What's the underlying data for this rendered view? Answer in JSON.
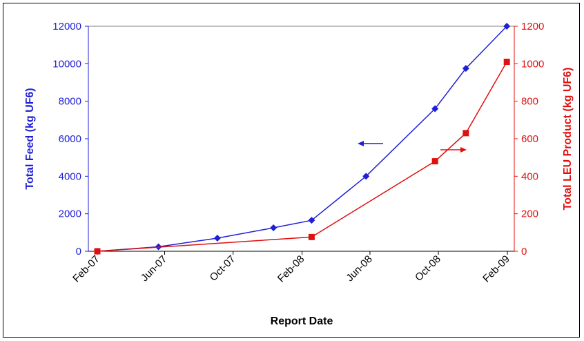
{
  "chart_data": {
    "type": "line",
    "title": "",
    "xlabel": "Report Date",
    "ylabel_left": "Total Feed (kg UF6)",
    "ylabel_right": "Total LEU Product (kg UF6)",
    "x_ticks": [
      "Feb-07",
      "Jun-07",
      "Oct-07",
      "Feb-08",
      "Jun-08",
      "Oct-08",
      "Feb-09"
    ],
    "y_left_ticks": [
      "0",
      "2000",
      "4000",
      "6000",
      "8000",
      "10000",
      "12000"
    ],
    "y_right_ticks": [
      "0",
      "200",
      "400",
      "600",
      "800",
      "1000",
      "1200"
    ],
    "ylim_left": [
      0,
      12000
    ],
    "ylim_right": [
      0,
      1200
    ],
    "xlim": [
      "2007-02-01",
      "2009-02-01"
    ],
    "grid": false,
    "legend": "none",
    "annotations": [
      "arrow pointing left: Total Feed uses left axis",
      "arrow pointing right: Total LEU Product uses right axis"
    ],
    "series": [
      {
        "axis": "left",
        "color": "#1f1fd6",
        "marker": "diamond",
        "x": [
          "2007-02-01",
          "2007-05-21",
          "2007-09-03",
          "2007-12-12",
          "2008-02-18",
          "2008-05-25",
          "2008-09-25",
          "2008-11-19",
          "2009-01-31"
        ],
        "y": [
          0,
          240,
          700,
          1250,
          1650,
          4000,
          7600,
          9750,
          12000
        ]
      },
      {
        "axis": "right",
        "color": "#e01010",
        "marker": "square",
        "x": [
          "2007-02-01",
          "2008-02-18",
          "2008-09-25",
          "2008-11-19",
          "2009-01-31"
        ],
        "y": [
          0,
          76,
          480,
          630,
          1010
        ]
      }
    ]
  }
}
